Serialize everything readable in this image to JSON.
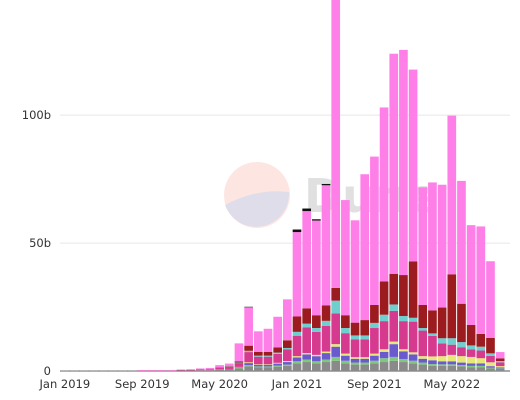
{
  "chart_data": {
    "type": "bar",
    "stacked": true,
    "title": "",
    "xlabel": "",
    "ylabel": "",
    "ylim": [
      0,
      145
    ],
    "grid": {
      "horizontal": true,
      "vertical": false
    },
    "legend": "none",
    "y_ticks": [
      {
        "value": 0,
        "label": "0"
      },
      {
        "value": 50,
        "label": "50b"
      },
      {
        "value": 100,
        "label": "100b"
      }
    ],
    "x_ticks": [
      {
        "index": 0,
        "label": "Jan 2019"
      },
      {
        "index": 8,
        "label": "Sep 2019"
      },
      {
        "index": 16,
        "label": "May 2020"
      },
      {
        "index": 24,
        "label": "Jan 2021"
      },
      {
        "index": 32,
        "label": "Sep 2021"
      },
      {
        "index": 40,
        "label": "May 2022"
      }
    ],
    "categories": [
      "Jan 2019",
      "Feb 2019",
      "Mar 2019",
      "Apr 2019",
      "May 2019",
      "Jun 2019",
      "Jul 2019",
      "Aug 2019",
      "Sep 2019",
      "Oct 2019",
      "Nov 2019",
      "Dec 2019",
      "Jan 2020",
      "Feb 2020",
      "Mar 2020",
      "Apr 2020",
      "May 2020",
      "Jun 2020",
      "Jul 2020",
      "Aug 2020",
      "Sep 2020",
      "Oct 2020",
      "Nov 2020",
      "Dec 2020",
      "Jan 2021",
      "Feb 2021",
      "Mar 2021",
      "Apr 2021",
      "May 2021",
      "Jun 2021",
      "Jul 2021",
      "Aug 2021",
      "Sep 2021",
      "Oct 2021",
      "Nov 2021",
      "Dec 2021",
      "Jan 2022",
      "Feb 2022",
      "Mar 2022",
      "Apr 2022",
      "May 2022",
      "Jun 2022",
      "Jul 2022",
      "Aug 2022",
      "Sep 2022",
      "Oct 2022"
    ],
    "series": [
      {
        "color": "#8a8a8a",
        "values": [
          0.1,
          0.1,
          0.1,
          0.1,
          0.1,
          0.1,
          0.1,
          0.1,
          0.1,
          0.1,
          0.1,
          0.1,
          0.2,
          0.2,
          0.3,
          0.3,
          0.5,
          0.6,
          1.0,
          1.8,
          1.5,
          1.5,
          1.7,
          2.0,
          3.0,
          3.5,
          3.0,
          3.5,
          4.0,
          3.0,
          2.5,
          2.5,
          3.0,
          3.5,
          4.0,
          3.5,
          3.0,
          2.5,
          2.0,
          2.0,
          2.0,
          1.8,
          1.5,
          1.5,
          1.0,
          0.8
        ]
      },
      {
        "color": "#7fc97f",
        "values": [
          0,
          0,
          0,
          0,
          0,
          0,
          0,
          0,
          0,
          0,
          0,
          0,
          0,
          0,
          0,
          0,
          0.1,
          0.1,
          0.2,
          0.5,
          0.3,
          0.3,
          0.4,
          0.5,
          0.8,
          1.0,
          0.8,
          1.0,
          1.5,
          1.0,
          0.8,
          0.8,
          1.0,
          1.5,
          1.5,
          1.2,
          1.0,
          0.8,
          0.7,
          0.6,
          0.6,
          0.5,
          0.5,
          0.5,
          0.3,
          0.2
        ]
      },
      {
        "color": "#6a5acd",
        "values": [
          0,
          0,
          0,
          0,
          0,
          0,
          0,
          0,
          0,
          0,
          0,
          0,
          0,
          0,
          0,
          0,
          0.1,
          0.1,
          0.3,
          0.8,
          0.6,
          0.6,
          0.8,
          1.0,
          1.5,
          2.0,
          2.0,
          2.5,
          4.0,
          2.0,
          1.5,
          1.5,
          2.0,
          2.5,
          5.0,
          3.0,
          2.5,
          1.5,
          1.5,
          1.2,
          1.2,
          1.0,
          1.0,
          1.0,
          0.6,
          0.4
        ]
      },
      {
        "color": "#e8e87a",
        "values": [
          0,
          0,
          0,
          0,
          0,
          0,
          0,
          0,
          0,
          0,
          0,
          0,
          0,
          0,
          0,
          0,
          0,
          0,
          0.1,
          0.3,
          0.2,
          0.2,
          0.3,
          0.4,
          0.5,
          0.5,
          0.5,
          0.6,
          1.0,
          0.8,
          0.6,
          0.6,
          0.8,
          1.0,
          1.0,
          0.8,
          0.8,
          1.0,
          1.5,
          2.0,
          2.5,
          2.5,
          2.5,
          2.0,
          1.5,
          0.5
        ]
      },
      {
        "color": "#d63a8f",
        "values": [
          0,
          0,
          0,
          0,
          0,
          0,
          0,
          0,
          0.1,
          0.1,
          0.1,
          0.1,
          0.2,
          0.2,
          0.3,
          0.4,
          0.6,
          0.8,
          1.5,
          4.0,
          3.0,
          3.0,
          3.5,
          4.5,
          8.0,
          10.0,
          9.0,
          10.0,
          12.0,
          8.0,
          7.0,
          7.0,
          10.0,
          11.0,
          12.0,
          11.0,
          12.0,
          10.0,
          8.0,
          5.0,
          4.0,
          3.5,
          3.0,
          3.0,
          2.5,
          1.5
        ]
      },
      {
        "color": "#6fcfcf",
        "values": [
          0,
          0,
          0,
          0,
          0,
          0,
          0,
          0,
          0,
          0,
          0,
          0,
          0,
          0,
          0,
          0,
          0.1,
          0.1,
          0.2,
          0.5,
          0.4,
          0.4,
          0.5,
          0.6,
          1.5,
          1.5,
          1.5,
          2.0,
          5.0,
          2.0,
          1.5,
          1.5,
          2.0,
          2.5,
          2.5,
          2.0,
          1.5,
          1.0,
          1.0,
          2.0,
          2.5,
          2.0,
          1.5,
          1.5,
          1.0,
          0.5
        ]
      },
      {
        "color": "#9b1b1e",
        "values": [
          0,
          0,
          0,
          0,
          0,
          0,
          0,
          0,
          0,
          0,
          0,
          0,
          0,
          0,
          0,
          0,
          0.1,
          0.2,
          0.5,
          2.0,
          1.5,
          1.5,
          2.0,
          3.0,
          6.0,
          6.0,
          5.0,
          6.0,
          5.0,
          5.0,
          5.0,
          6.0,
          7.0,
          13.0,
          12.0,
          16.0,
          22.0,
          9.0,
          9.0,
          12.0,
          25.0,
          15.0,
          8.0,
          5.0,
          6.0,
          1.0
        ]
      },
      {
        "color": "#ff7fe8",
        "values": [
          0,
          0,
          0,
          0,
          0,
          0,
          0,
          0,
          0.1,
          0.1,
          0.1,
          0.1,
          0.2,
          0.3,
          0.4,
          0.5,
          0.8,
          1.0,
          7.0,
          15.0,
          8.0,
          9.0,
          12.0,
          16.0,
          33.0,
          38.0,
          37.0,
          47.0,
          113.0,
          45.0,
          40.0,
          57.0,
          58.0,
          68.0,
          86.0,
          88.0,
          75.0,
          46.0,
          50.0,
          48.0,
          62.0,
          48.0,
          39.0,
          42.0,
          30.0,
          2.5
        ]
      },
      {
        "color": "#111111",
        "values": [
          0,
          0,
          0,
          0,
          0,
          0,
          0,
          0,
          0,
          0,
          0,
          0,
          0,
          0,
          0,
          0,
          0,
          0,
          0,
          0.2,
          0,
          0,
          0,
          0,
          1.0,
          1.0,
          0.5,
          0.5,
          1.0,
          0,
          0,
          0,
          0,
          0,
          0,
          0,
          0,
          0,
          0,
          0,
          0,
          0,
          0,
          0,
          0,
          0
        ]
      }
    ]
  },
  "watermark": {
    "text": "Dune"
  }
}
